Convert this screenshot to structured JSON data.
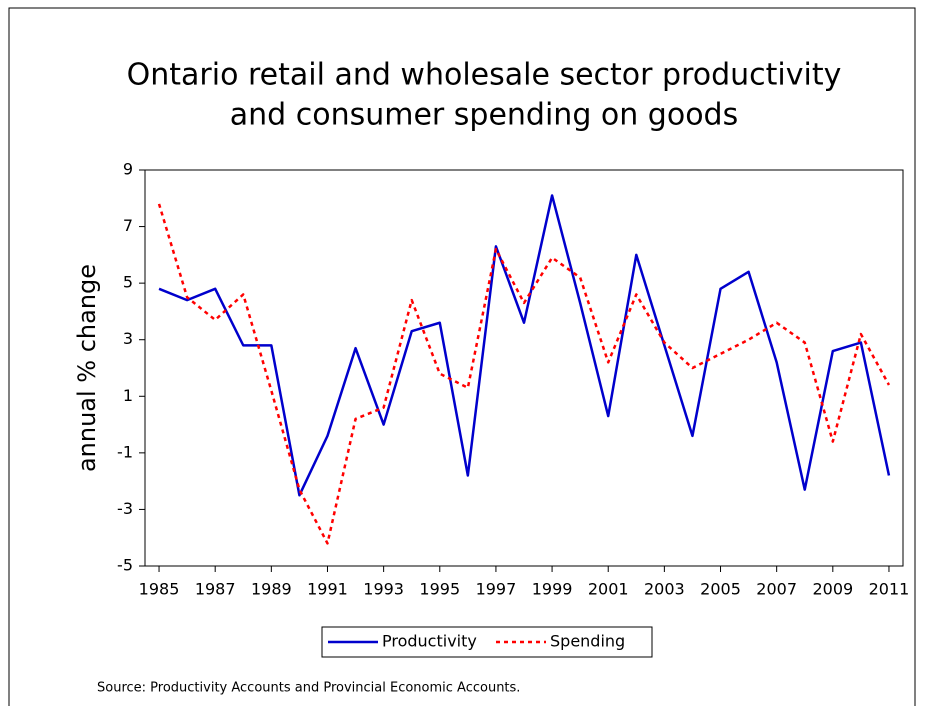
{
  "chart_data": {
    "type": "line",
    "title": [
      "Ontario retail and wholesale sector productivity",
      "and consumer spending on goods"
    ],
    "y_label": "annual % change",
    "source": "Source:   Productivity Accounts and Provincial Economic Accounts.",
    "x": [
      1985,
      1986,
      1987,
      1988,
      1989,
      1990,
      1991,
      1992,
      1993,
      1994,
      1995,
      1996,
      1997,
      1998,
      1999,
      2000,
      2001,
      2002,
      2003,
      2004,
      2005,
      2006,
      2007,
      2008,
      2009,
      2010,
      2011
    ],
    "xlim": [
      1984.5,
      2011.5
    ],
    "xticks": [
      1985,
      1987,
      1989,
      1991,
      1993,
      1995,
      1997,
      1999,
      2001,
      2003,
      2005,
      2007,
      2009,
      2011
    ],
    "ylim": [
      -5,
      9
    ],
    "yticks": [
      -5,
      -3,
      -1,
      1,
      3,
      5,
      7,
      9
    ],
    "grid": false,
    "legend": "bottom",
    "series": [
      {
        "name": "Productivity",
        "color": "#0000cc",
        "dash": false,
        "values": [
          4.8,
          4.4,
          4.8,
          2.8,
          2.8,
          -2.5,
          -0.4,
          2.7,
          0.0,
          3.3,
          3.6,
          -1.8,
          6.3,
          3.6,
          8.1,
          4.3,
          0.3,
          6.0,
          2.8,
          -0.4,
          4.8,
          5.4,
          2.2,
          -2.3,
          2.6,
          2.9,
          -1.8
        ]
      },
      {
        "name": "Spending",
        "color": "#ff0000",
        "dash": true,
        "values": [
          7.8,
          4.5,
          3.7,
          4.6,
          1.2,
          -2.3,
          -4.2,
          0.2,
          0.6,
          4.4,
          1.8,
          1.3,
          6.2,
          4.3,
          5.9,
          5.2,
          2.2,
          4.6,
          2.9,
          2.0,
          2.5,
          3.0,
          3.6,
          2.9,
          -0.6,
          3.2,
          1.4
        ]
      }
    ]
  }
}
